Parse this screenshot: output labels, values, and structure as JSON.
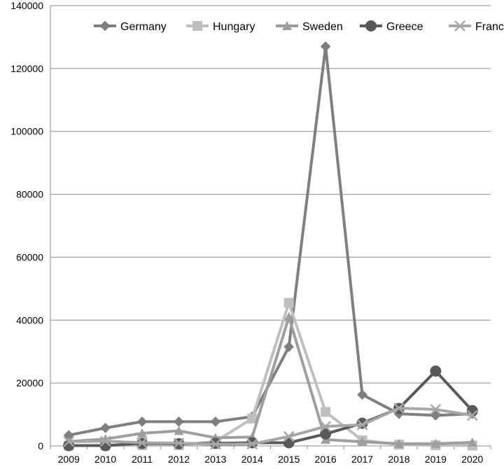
{
  "chart_data": {
    "type": "line",
    "title": "",
    "xlabel": "",
    "ylabel": "",
    "categories": [
      "2009",
      "2010",
      "2011",
      "2012",
      "2013",
      "2014",
      "2015",
      "2016",
      "2017",
      "2018",
      "2019",
      "2020"
    ],
    "ylim": [
      0,
      140000
    ],
    "yticks": [
      "0",
      "20000",
      "40000",
      "60000",
      "80000",
      "100000",
      "120000",
      "140000"
    ],
    "grid": "horizontal",
    "legend_position": "top",
    "series": [
      {
        "name": "Germany",
        "color": "#7f7f7f",
        "marker": "diamond",
        "values": [
          3400,
          5700,
          7700,
          7700,
          7700,
          9300,
          31500,
          127000,
          16300,
          10200,
          9700,
          10200
        ]
      },
      {
        "name": "Hungary",
        "color": "#bfbfbf",
        "marker": "square",
        "values": [
          100,
          100,
          200,
          200,
          1400,
          8700,
          45500,
          10800,
          1800,
          400,
          200,
          100
        ]
      },
      {
        "name": "Sweden",
        "color": "#9e9e9e",
        "marker": "triangle",
        "values": [
          1400,
          2200,
          4000,
          4800,
          2600,
          2800,
          41000,
          2000,
          1300,
          700,
          700,
          1100
        ]
      },
      {
        "name": "Greece",
        "color": "#595959",
        "marker": "circle",
        "values": [
          100,
          100,
          800,
          700,
          800,
          1000,
          1000,
          3800,
          7200,
          11900,
          23800,
          11200
        ]
      },
      {
        "name": "France",
        "color": "#a6a6a6",
        "marker": "x",
        "values": [
          1400,
          1500,
          1000,
          900,
          500,
          600,
          3000,
          6200,
          6700,
          12000,
          11600,
          9700
        ]
      }
    ]
  }
}
